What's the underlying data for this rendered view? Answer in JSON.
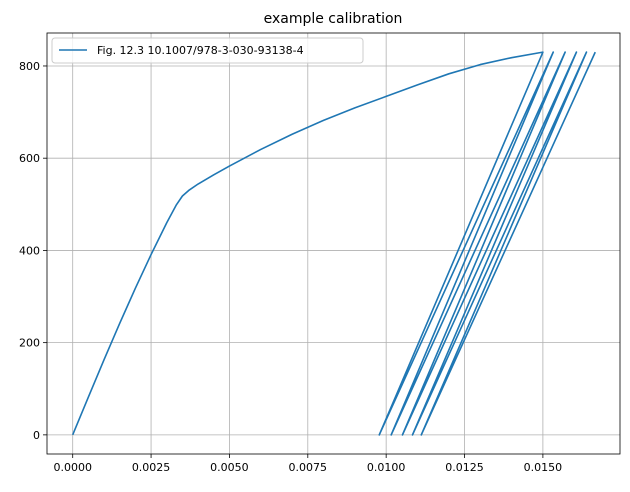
{
  "chart_data": {
    "type": "line",
    "title": "example calibration",
    "xlabel": "",
    "ylabel": "",
    "xlim": [
      -0.00082,
      0.01746
    ],
    "ylim": [
      -41.5,
      871.5
    ],
    "xticks": [
      {
        "value": 0.0,
        "label": "0.0000"
      },
      {
        "value": 0.0025,
        "label": "0.0025"
      },
      {
        "value": 0.005,
        "label": "0.0050"
      },
      {
        "value": 0.0075,
        "label": "0.0075"
      },
      {
        "value": 0.01,
        "label": "0.0100"
      },
      {
        "value": 0.0125,
        "label": "0.0125"
      },
      {
        "value": 0.015,
        "label": "0.0150"
      }
    ],
    "yticks": [
      {
        "value": 0,
        "label": "0"
      },
      {
        "value": 200,
        "label": "200"
      },
      {
        "value": 400,
        "label": "400"
      },
      {
        "value": 600,
        "label": "600"
      },
      {
        "value": 800,
        "label": "800"
      }
    ],
    "grid": true,
    "legend_position": "top-left",
    "series": [
      {
        "name": "Fig. 12.3 10.1007/978-3-030-93138-4",
        "color": "#1f77b4",
        "x": [
          0.0,
          0.0005,
          0.001,
          0.0015,
          0.002,
          0.0025,
          0.003,
          0.0033,
          0.0035,
          0.0037,
          0.004,
          0.0045,
          0.005,
          0.006,
          0.007,
          0.008,
          0.009,
          0.01,
          0.011,
          0.012,
          0.013,
          0.014,
          0.015,
          0.00978,
          0.01533,
          0.01016,
          0.01571,
          0.01052,
          0.01607,
          0.01084,
          0.01639,
          0.01112,
          0.01667
        ],
        "y": [
          0,
          82,
          163,
          242,
          318,
          391,
          460,
          498,
          518,
          530,
          544,
          564,
          583,
          619,
          652,
          682,
          709,
          734,
          759,
          783,
          803,
          818,
          830,
          0,
          830,
          0,
          830,
          0,
          830,
          0,
          830,
          0,
          830
        ]
      }
    ]
  }
}
